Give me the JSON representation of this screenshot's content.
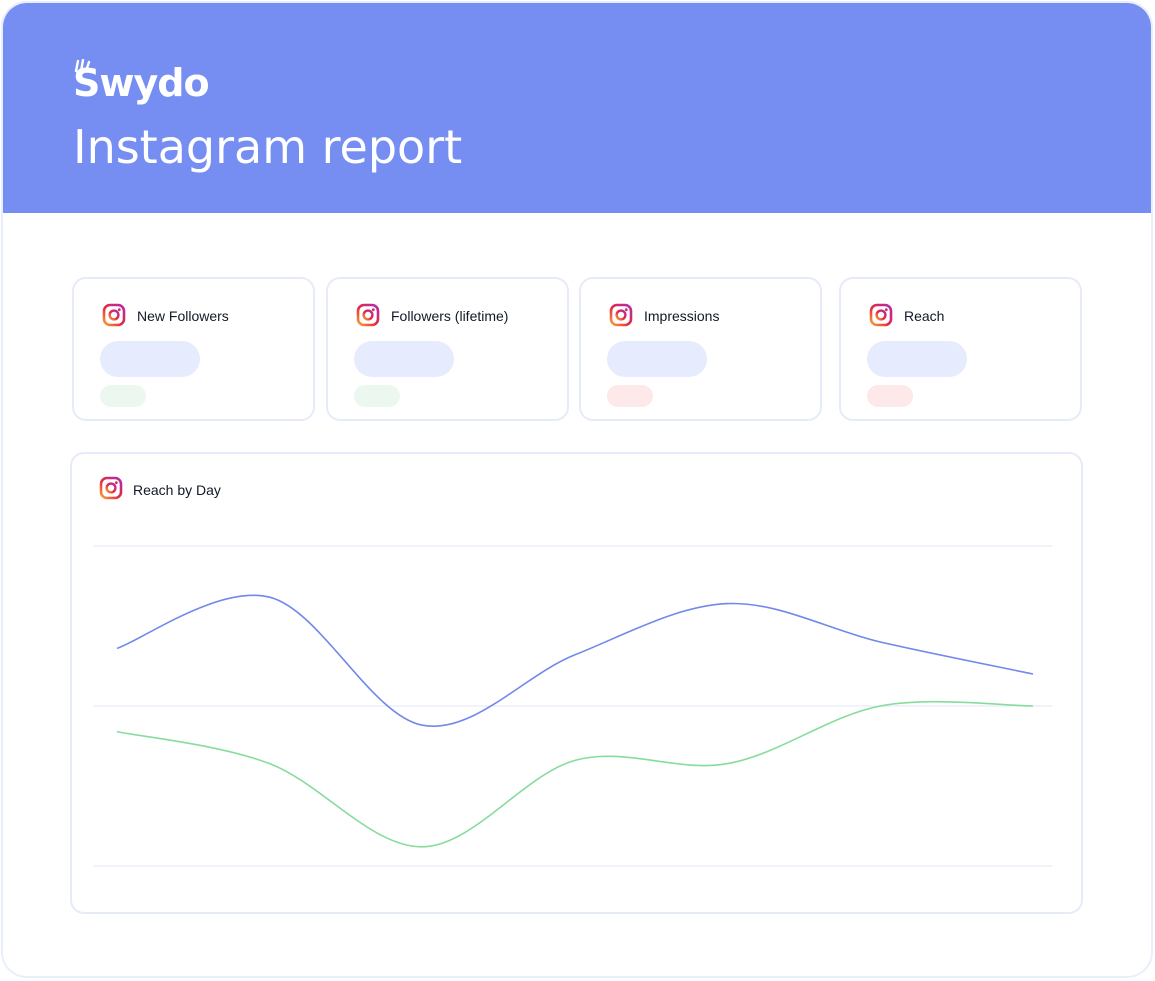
{
  "header": {
    "brand": "Swydo",
    "title": "Instagram report",
    "background_color": "#768ef2"
  },
  "kpi_cards": [
    {
      "label": "New Followers",
      "icon": "instagram-icon",
      "trend": "positive"
    },
    {
      "label": "Followers (lifetime)",
      "icon": "instagram-icon",
      "trend": "positive"
    },
    {
      "label": "Impressions",
      "icon": "instagram-icon",
      "trend": "negative"
    },
    {
      "label": "Reach",
      "icon": "instagram-icon",
      "trend": "negative"
    }
  ],
  "chart_card": {
    "title": "Reach by Day",
    "icon": "instagram-icon"
  },
  "chart_data": {
    "type": "line",
    "title": "Reach by Day",
    "xlabel": "",
    "ylabel": "",
    "ylim": [
      0,
      100
    ],
    "x": [
      1,
      2,
      3,
      4,
      5,
      6,
      7
    ],
    "grid": true,
    "gridlines": [
      0,
      50,
      100
    ],
    "series": [
      {
        "values": [
          68,
          84,
          44,
          66,
          82,
          70,
          60
        ],
        "color": "#7089ea"
      },
      {
        "values": [
          42,
          32,
          6,
          33,
          32,
          50,
          50
        ],
        "color": "#86dc9d"
      }
    ]
  }
}
